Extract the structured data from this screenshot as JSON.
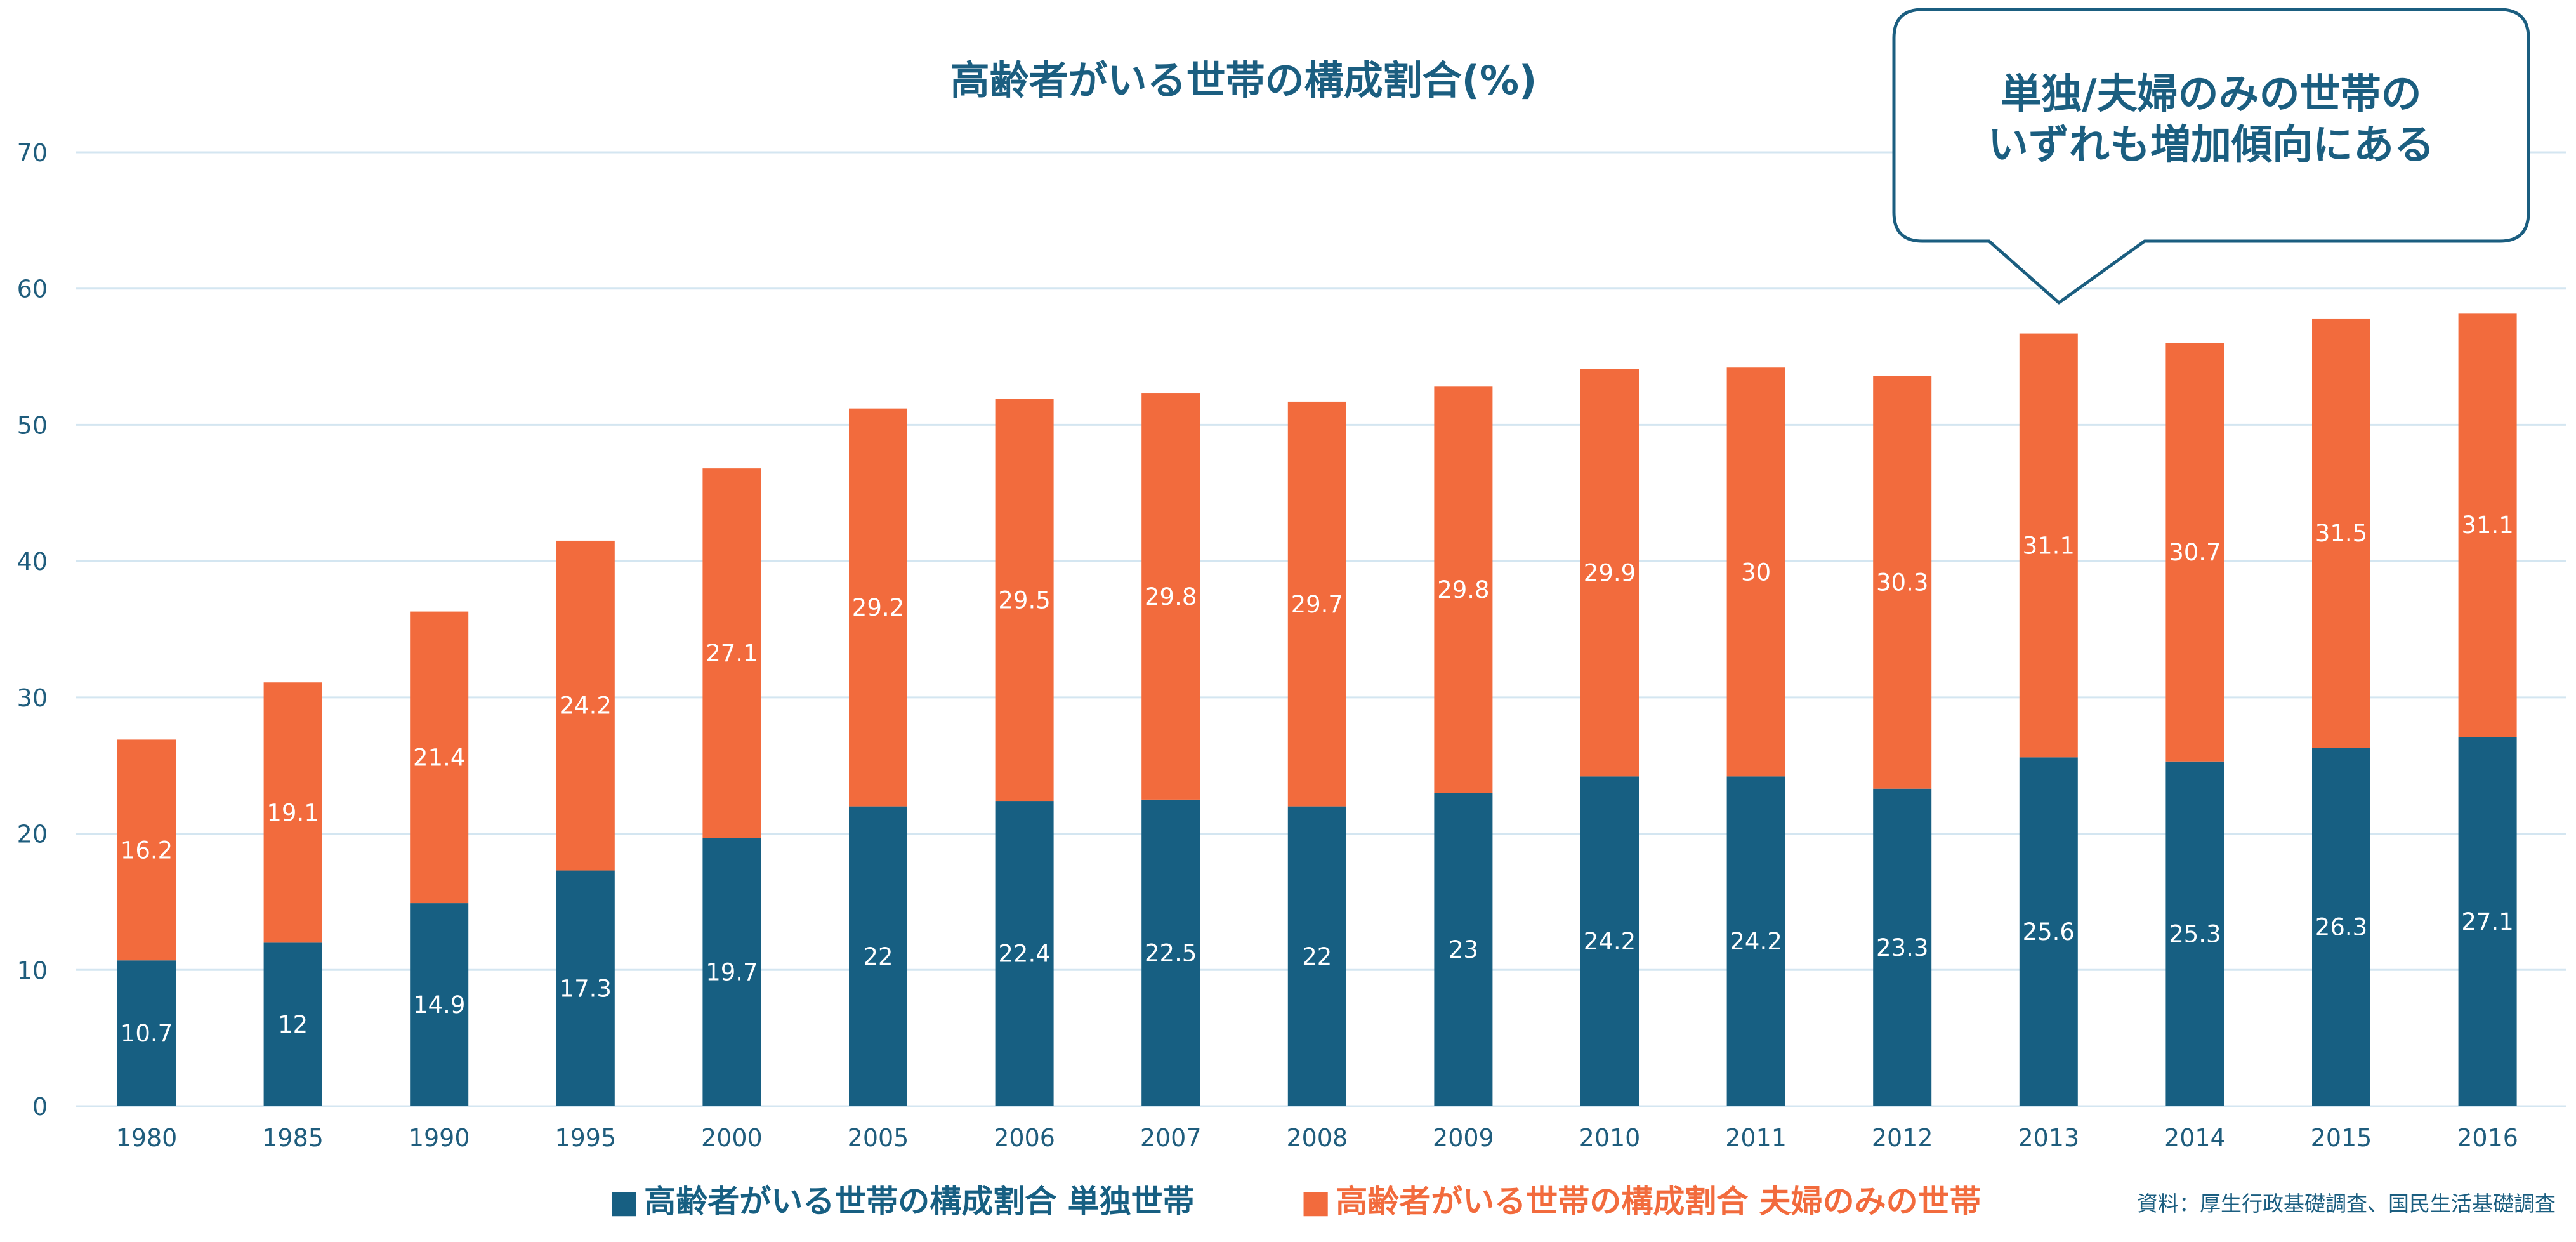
{
  "chart_data": {
    "type": "bar",
    "stacked": true,
    "title": "高齢者がいる世帯の構成割合(%)",
    "categories": [
      "1980",
      "1985",
      "1990",
      "1995",
      "2000",
      "2005",
      "2006",
      "2007",
      "2008",
      "2009",
      "2010",
      "2011",
      "2012",
      "2013",
      "2014",
      "2015",
      "2016"
    ],
    "series": [
      {
        "name": "高齢者がいる世帯の構成割合 単独世帯",
        "color": "#175f82",
        "values": [
          10.7,
          12,
          14.9,
          17.3,
          19.7,
          22,
          22.4,
          22.5,
          22,
          23,
          24.2,
          24.2,
          23.3,
          25.6,
          25.3,
          26.3,
          27.1
        ]
      },
      {
        "name": "高齢者がいる世帯の構成割合 夫婦のみの世帯",
        "color": "#f26b3d",
        "values": [
          16.2,
          19.1,
          21.4,
          24.2,
          27.1,
          29.2,
          29.5,
          29.8,
          29.7,
          29.8,
          29.9,
          30,
          30.3,
          31.1,
          30.7,
          31.5,
          31.1
        ]
      }
    ],
    "ylim": [
      0,
      70
    ],
    "yticks": [
      0,
      10,
      20,
      30,
      40,
      50,
      60,
      70
    ],
    "grid": true,
    "legend_position": "bottom",
    "xlabel": "",
    "ylabel": ""
  },
  "legend_marker": "■",
  "callout": {
    "line1": "単独/夫婦のみの世帯の",
    "line2": "いずれも増加傾向にある"
  },
  "source": "資料：厚生行政基礎調査、国民生活基礎調査",
  "colors": {
    "axis_text": "#1f5d7d",
    "title": "#1b5e80",
    "grid": "#d4e6f1"
  }
}
